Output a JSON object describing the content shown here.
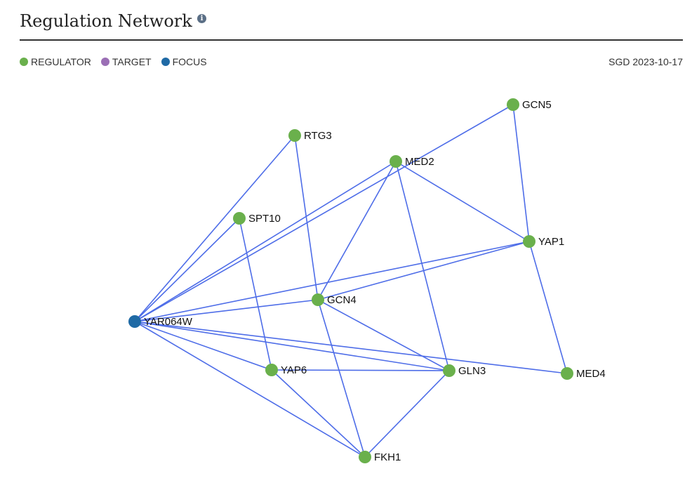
{
  "header": {
    "title": "Regulation Network",
    "info_icon": "info-icon"
  },
  "legend": [
    {
      "label": "REGULATOR",
      "color": "#6ab04c"
    },
    {
      "label": "TARGET",
      "color": "#9b6fb5"
    },
    {
      "label": "FOCUS",
      "color": "#1f6aa5"
    }
  ],
  "source": "SGD 2023-10-17",
  "colors": {
    "regulator": "#6ab04c",
    "focus": "#1f6aa5",
    "edge": "#4e6de8"
  },
  "network": {
    "nodes": [
      {
        "id": "YAR064W",
        "role": "focus"
      },
      {
        "id": "GCN5",
        "role": "regulator"
      },
      {
        "id": "RTG3",
        "role": "regulator"
      },
      {
        "id": "MED2",
        "role": "regulator"
      },
      {
        "id": "SPT10",
        "role": "regulator"
      },
      {
        "id": "YAP1",
        "role": "regulator"
      },
      {
        "id": "GCN4",
        "role": "regulator"
      },
      {
        "id": "YAP6",
        "role": "regulator"
      },
      {
        "id": "GLN3",
        "role": "regulator"
      },
      {
        "id": "MED4",
        "role": "regulator"
      },
      {
        "id": "FKH1",
        "role": "regulator"
      }
    ],
    "edges": [
      [
        "YAR064W",
        "RTG3"
      ],
      [
        "YAR064W",
        "SPT10"
      ],
      [
        "YAR064W",
        "MED2"
      ],
      [
        "YAR064W",
        "GCN5"
      ],
      [
        "YAR064W",
        "YAP1"
      ],
      [
        "YAR064W",
        "GCN4"
      ],
      [
        "YAR064W",
        "YAP6"
      ],
      [
        "YAR064W",
        "GLN3"
      ],
      [
        "YAR064W",
        "MED4"
      ],
      [
        "YAR064W",
        "FKH1"
      ],
      [
        "GCN5",
        "YAP1"
      ],
      [
        "RTG3",
        "GCN4"
      ],
      [
        "MED2",
        "YAP1"
      ],
      [
        "MED2",
        "GCN4"
      ],
      [
        "MED2",
        "GLN3"
      ],
      [
        "SPT10",
        "YAP6"
      ],
      [
        "YAP1",
        "GCN4"
      ],
      [
        "YAP1",
        "MED4"
      ],
      [
        "GCN4",
        "GLN3"
      ],
      [
        "GCN4",
        "FKH1"
      ],
      [
        "YAP6",
        "GLN3"
      ],
      [
        "YAP6",
        "FKH1"
      ],
      [
        "GLN3",
        "FKH1"
      ]
    ]
  }
}
